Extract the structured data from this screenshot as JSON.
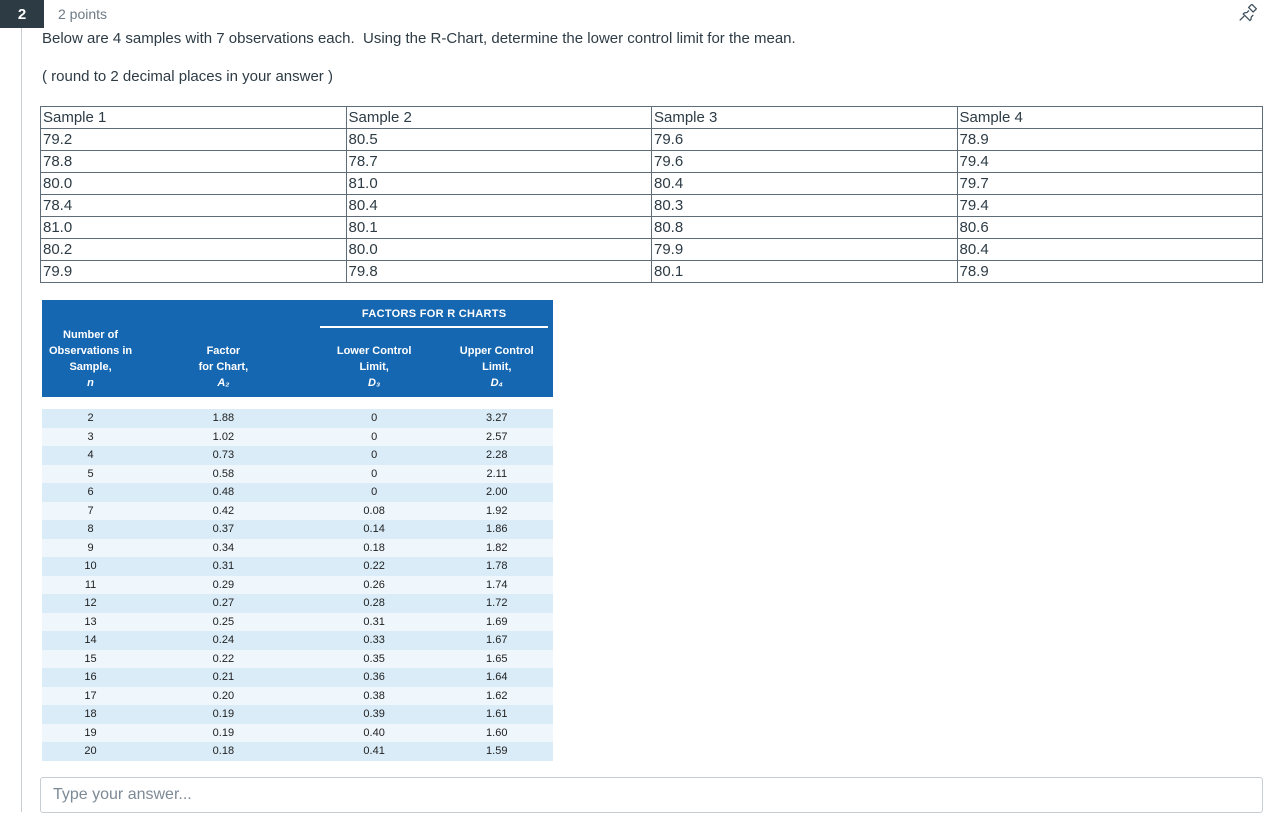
{
  "header": {
    "question_number": "2",
    "points_label": "2 points"
  },
  "question": {
    "text": "Below are 4 samples with 7 observations each.  Using the R-Chart, determine the lower control limit for the mean.",
    "note": "( round to 2 decimal places in your answer )"
  },
  "samples_table": {
    "headers": [
      "Sample 1",
      "Sample 2",
      "Sample 3",
      "Sample 4"
    ],
    "rows": [
      [
        "79.2",
        "80.5",
        "79.6",
        "78.9"
      ],
      [
        "78.8",
        "78.7",
        "79.6",
        "79.4"
      ],
      [
        "80.0",
        "81.0",
        "80.4",
        "79.7"
      ],
      [
        "78.4",
        "80.4",
        "80.3",
        "79.4"
      ],
      [
        "81.0",
        "80.1",
        "80.8",
        "80.6"
      ],
      [
        "80.2",
        "80.0",
        "79.9",
        "80.4"
      ],
      [
        "79.9",
        "79.8",
        "80.1",
        "78.9"
      ]
    ]
  },
  "factors_table": {
    "title": "FACTORS FOR R CHARTS",
    "column_headers": [
      {
        "lines": [
          "Number of",
          "Observations in",
          "Sample,",
          "n"
        ]
      },
      {
        "lines": [
          "Factor",
          "for Chart,",
          "A₂"
        ]
      },
      {
        "lines": [
          "Lower Control",
          "Limit,",
          "D₃"
        ]
      },
      {
        "lines": [
          "Upper Control",
          "Limit,",
          "D₄"
        ]
      }
    ],
    "rows": [
      [
        "2",
        "1.88",
        "0",
        "3.27"
      ],
      [
        "3",
        "1.02",
        "0",
        "2.57"
      ],
      [
        "4",
        "0.73",
        "0",
        "2.28"
      ],
      [
        "5",
        "0.58",
        "0",
        "2.11"
      ],
      [
        "6",
        "0.48",
        "0",
        "2.00"
      ],
      [
        "7",
        "0.42",
        "0.08",
        "1.92"
      ],
      [
        "8",
        "0.37",
        "0.14",
        "1.86"
      ],
      [
        "9",
        "0.34",
        "0.18",
        "1.82"
      ],
      [
        "10",
        "0.31",
        "0.22",
        "1.78"
      ],
      [
        "11",
        "0.29",
        "0.26",
        "1.74"
      ],
      [
        "12",
        "0.27",
        "0.28",
        "1.72"
      ],
      [
        "13",
        "0.25",
        "0.31",
        "1.69"
      ],
      [
        "14",
        "0.24",
        "0.33",
        "1.67"
      ],
      [
        "15",
        "0.22",
        "0.35",
        "1.65"
      ],
      [
        "16",
        "0.21",
        "0.36",
        "1.64"
      ],
      [
        "17",
        "0.20",
        "0.38",
        "1.62"
      ],
      [
        "18",
        "0.19",
        "0.39",
        "1.61"
      ],
      [
        "19",
        "0.19",
        "0.40",
        "1.60"
      ],
      [
        "20",
        "0.18",
        "0.41",
        "1.59"
      ]
    ]
  },
  "answer": {
    "placeholder": "Type your answer..."
  },
  "icons": {
    "pin": "pushpin-icon"
  },
  "colors": {
    "question_number_bg": "#2d3b45",
    "factors_header_bg": "#1667b1",
    "factors_row_dark": "#d9ecf8",
    "factors_row_light": "#eff7fc",
    "table_border": "#5f6d79",
    "muted_text": "#6d7a85"
  }
}
